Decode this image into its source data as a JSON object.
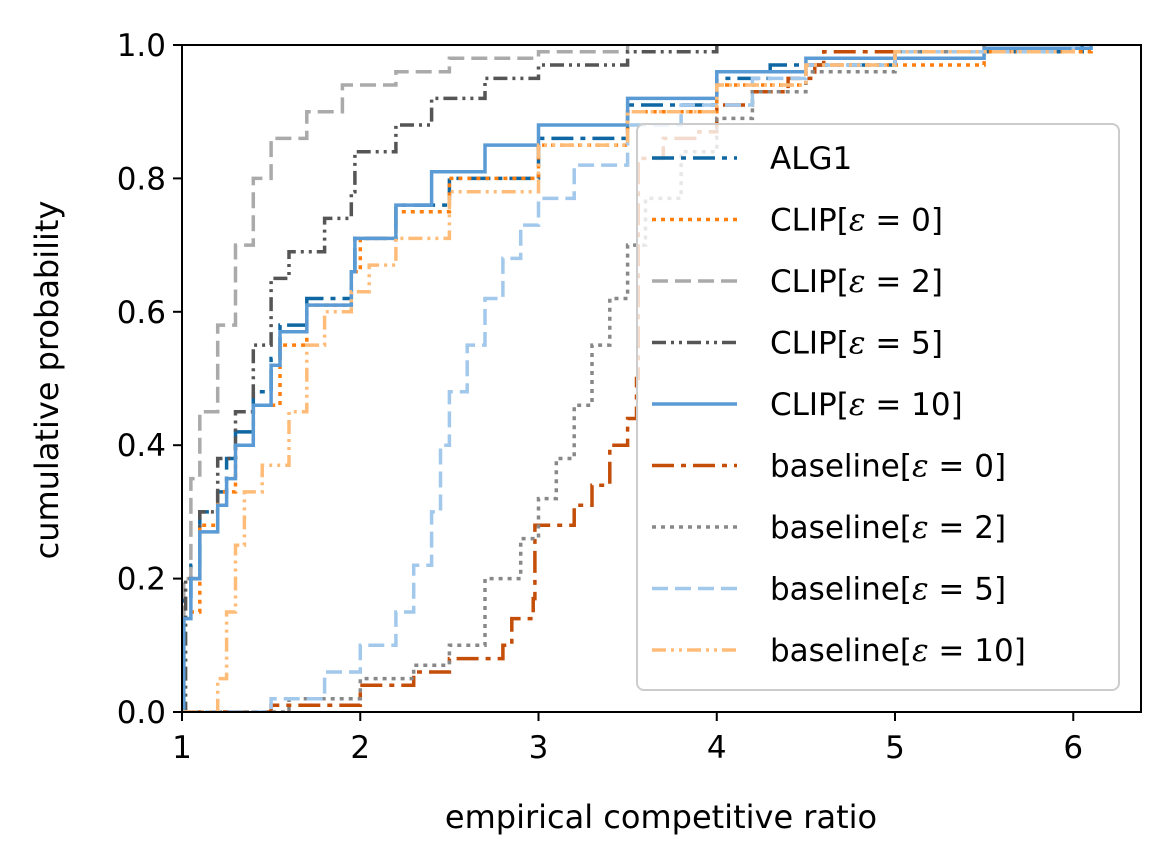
{
  "chart_data": {
    "type": "line",
    "title": "",
    "xlabel": "empirical competitive ratio",
    "ylabel": "cumulative probability",
    "xlim": [
      1,
      6.38
    ],
    "ylim": [
      0,
      1
    ],
    "xticks": [
      1,
      2,
      3,
      4,
      5,
      6
    ],
    "yticks": [
      0.0,
      0.2,
      0.4,
      0.6,
      0.8,
      1.0
    ],
    "xtick_labels": [
      "1",
      "2",
      "3",
      "4",
      "5",
      "6"
    ],
    "ytick_labels": [
      "0.0",
      "0.2",
      "0.4",
      "0.6",
      "0.8",
      "1.0"
    ],
    "grid": false,
    "legend_position": "lower-right",
    "series": [
      {
        "name": "ALG1",
        "legend_parts": [
          "ALG1"
        ],
        "color": "#0e67a3",
        "dash": "22 7 5 7",
        "points": [
          [
            1.0,
            0.0
          ],
          [
            1.01,
            0.17
          ],
          [
            1.05,
            0.22
          ],
          [
            1.1,
            0.3
          ],
          [
            1.2,
            0.33
          ],
          [
            1.25,
            0.38
          ],
          [
            1.3,
            0.42
          ],
          [
            1.4,
            0.48
          ],
          [
            1.5,
            0.53
          ],
          [
            1.55,
            0.58
          ],
          [
            1.7,
            0.62
          ],
          [
            1.95,
            0.66
          ],
          [
            1.97,
            0.71
          ],
          [
            2.2,
            0.76
          ],
          [
            2.5,
            0.8
          ],
          [
            3.0,
            0.86
          ],
          [
            3.5,
            0.91
          ],
          [
            4.0,
            0.95
          ],
          [
            4.3,
            0.97
          ],
          [
            5.0,
            0.99
          ],
          [
            6.05,
            1.0
          ]
        ]
      },
      {
        "name": "CLIP[ε = 0]",
        "legend_parts": [
          "CLIP[",
          "ε",
          " = 0]"
        ],
        "color": "#ff7f0e",
        "dash": "4 5",
        "points": [
          [
            1.0,
            0.0
          ],
          [
            1.01,
            0.15
          ],
          [
            1.1,
            0.28
          ],
          [
            1.2,
            0.33
          ],
          [
            1.3,
            0.4
          ],
          [
            1.4,
            0.46
          ],
          [
            1.55,
            0.55
          ],
          [
            1.7,
            0.61
          ],
          [
            1.95,
            0.66
          ],
          [
            2.0,
            0.71
          ],
          [
            2.2,
            0.75
          ],
          [
            2.5,
            0.8
          ],
          [
            3.0,
            0.85
          ],
          [
            3.5,
            0.9
          ],
          [
            4.0,
            0.94
          ],
          [
            4.5,
            0.97
          ],
          [
            5.5,
            0.99
          ],
          [
            6.1,
            1.0
          ]
        ]
      },
      {
        "name": "CLIP[ε = 2]",
        "legend_parts": [
          "CLIP[",
          "ε",
          " = 2]"
        ],
        "color": "#aaaaaa",
        "dash": "16 7",
        "points": [
          [
            1.0,
            0.0
          ],
          [
            1.01,
            0.2
          ],
          [
            1.05,
            0.35
          ],
          [
            1.1,
            0.45
          ],
          [
            1.2,
            0.58
          ],
          [
            1.3,
            0.7
          ],
          [
            1.4,
            0.8
          ],
          [
            1.5,
            0.86
          ],
          [
            1.7,
            0.9
          ],
          [
            1.9,
            0.94
          ],
          [
            2.2,
            0.96
          ],
          [
            2.5,
            0.98
          ],
          [
            3.0,
            0.99
          ],
          [
            3.5,
            1.0
          ]
        ]
      },
      {
        "name": "CLIP[ε = 5]",
        "legend_parts": [
          "CLIP[",
          "ε",
          " = 5]"
        ],
        "color": "#555555",
        "dash": "14 5 3 5 3 5",
        "points": [
          [
            1.0,
            0.0
          ],
          [
            1.02,
            0.2
          ],
          [
            1.1,
            0.3
          ],
          [
            1.2,
            0.38
          ],
          [
            1.3,
            0.45
          ],
          [
            1.4,
            0.55
          ],
          [
            1.5,
            0.65
          ],
          [
            1.6,
            0.69
          ],
          [
            1.8,
            0.74
          ],
          [
            1.95,
            0.78
          ],
          [
            1.97,
            0.84
          ],
          [
            2.2,
            0.88
          ],
          [
            2.4,
            0.92
          ],
          [
            2.7,
            0.95
          ],
          [
            3.0,
            0.97
          ],
          [
            3.5,
            0.99
          ],
          [
            4.0,
            1.0
          ]
        ]
      },
      {
        "name": "CLIP[ε = 10]",
        "legend_parts": [
          "CLIP[",
          "ε",
          " = 10]"
        ],
        "color": "#5b9bd5",
        "dash": "",
        "points": [
          [
            1.0,
            0.0
          ],
          [
            1.01,
            0.14
          ],
          [
            1.05,
            0.2
          ],
          [
            1.1,
            0.27
          ],
          [
            1.2,
            0.31
          ],
          [
            1.25,
            0.35
          ],
          [
            1.3,
            0.4
          ],
          [
            1.4,
            0.46
          ],
          [
            1.5,
            0.52
          ],
          [
            1.55,
            0.57
          ],
          [
            1.7,
            0.61
          ],
          [
            1.95,
            0.66
          ],
          [
            1.97,
            0.71
          ],
          [
            2.2,
            0.76
          ],
          [
            2.4,
            0.81
          ],
          [
            2.7,
            0.85
          ],
          [
            3.0,
            0.88
          ],
          [
            3.5,
            0.92
          ],
          [
            4.0,
            0.96
          ],
          [
            4.5,
            0.98
          ],
          [
            5.5,
            0.995
          ],
          [
            6.1,
            1.0
          ]
        ]
      },
      {
        "name": "baseline[ε = 0]",
        "legend_parts": [
          "baseline[",
          "ε",
          " = 0]"
        ],
        "color": "#c44e08",
        "dash": "22 7 5 7",
        "points": [
          [
            1.0,
            0.0
          ],
          [
            1.2,
            0.0
          ],
          [
            1.5,
            0.01
          ],
          [
            2.0,
            0.04
          ],
          [
            2.3,
            0.06
          ],
          [
            2.5,
            0.08
          ],
          [
            2.8,
            0.1
          ],
          [
            2.85,
            0.14
          ],
          [
            2.97,
            0.17
          ],
          [
            2.98,
            0.28
          ],
          [
            3.2,
            0.31
          ],
          [
            3.3,
            0.34
          ],
          [
            3.4,
            0.4
          ],
          [
            3.5,
            0.44
          ],
          [
            3.55,
            0.5
          ],
          [
            3.56,
            0.83
          ],
          [
            3.7,
            0.86
          ],
          [
            3.9,
            0.87
          ],
          [
            4.0,
            0.91
          ],
          [
            4.2,
            0.93
          ],
          [
            4.4,
            0.95
          ],
          [
            4.55,
            0.97
          ],
          [
            4.6,
            0.99
          ],
          [
            5.0,
            1.0
          ]
        ]
      },
      {
        "name": "baseline[ε = 2]",
        "legend_parts": [
          "baseline[",
          "ε",
          " = 2]"
        ],
        "color": "#888888",
        "dash": "4 5",
        "points": [
          [
            1.0,
            0.0
          ],
          [
            1.2,
            0.0
          ],
          [
            1.6,
            0.02
          ],
          [
            2.0,
            0.05
          ],
          [
            2.3,
            0.07
          ],
          [
            2.5,
            0.1
          ],
          [
            2.7,
            0.2
          ],
          [
            2.9,
            0.26
          ],
          [
            3.0,
            0.32
          ],
          [
            3.1,
            0.38
          ],
          [
            3.2,
            0.46
          ],
          [
            3.3,
            0.55
          ],
          [
            3.4,
            0.62
          ],
          [
            3.5,
            0.7
          ],
          [
            3.6,
            0.77
          ],
          [
            3.8,
            0.84
          ],
          [
            4.0,
            0.89
          ],
          [
            4.2,
            0.93
          ],
          [
            4.5,
            0.96
          ],
          [
            5.0,
            0.99
          ],
          [
            5.5,
            1.0
          ]
        ]
      },
      {
        "name": "baseline[ε = 5]",
        "legend_parts": [
          "baseline[",
          "ε",
          " = 5]"
        ],
        "color": "#a2c8ec",
        "dash": "16 7",
        "points": [
          [
            1.0,
            0.0
          ],
          [
            1.2,
            0.0
          ],
          [
            1.5,
            0.02
          ],
          [
            1.8,
            0.06
          ],
          [
            2.0,
            0.1
          ],
          [
            2.2,
            0.15
          ],
          [
            2.3,
            0.22
          ],
          [
            2.4,
            0.3
          ],
          [
            2.45,
            0.4
          ],
          [
            2.5,
            0.48
          ],
          [
            2.6,
            0.55
          ],
          [
            2.7,
            0.62
          ],
          [
            2.8,
            0.68
          ],
          [
            2.9,
            0.73
          ],
          [
            3.0,
            0.77
          ],
          [
            3.2,
            0.82
          ],
          [
            3.5,
            0.88
          ],
          [
            3.8,
            0.91
          ],
          [
            4.2,
            0.95
          ],
          [
            4.5,
            0.97
          ],
          [
            5.0,
            0.99
          ],
          [
            6.0,
            1.0
          ]
        ]
      },
      {
        "name": "baseline[ε = 10]",
        "legend_parts": [
          "baseline[",
          "ε",
          " = 10]"
        ],
        "color": "#ffbc79",
        "dash": "14 5 3 5 3 5",
        "points": [
          [
            1.0,
            0.0
          ],
          [
            1.1,
            0.0
          ],
          [
            1.2,
            0.05
          ],
          [
            1.25,
            0.15
          ],
          [
            1.3,
            0.25
          ],
          [
            1.35,
            0.33
          ],
          [
            1.45,
            0.37
          ],
          [
            1.6,
            0.45
          ],
          [
            1.7,
            0.55
          ],
          [
            1.8,
            0.6
          ],
          [
            1.95,
            0.63
          ],
          [
            2.05,
            0.67
          ],
          [
            2.2,
            0.71
          ],
          [
            2.5,
            0.78
          ],
          [
            3.0,
            0.85
          ],
          [
            3.5,
            0.9
          ],
          [
            4.0,
            0.94
          ],
          [
            4.5,
            0.97
          ],
          [
            5.0,
            0.99
          ],
          [
            6.0,
            1.0
          ]
        ]
      }
    ]
  }
}
